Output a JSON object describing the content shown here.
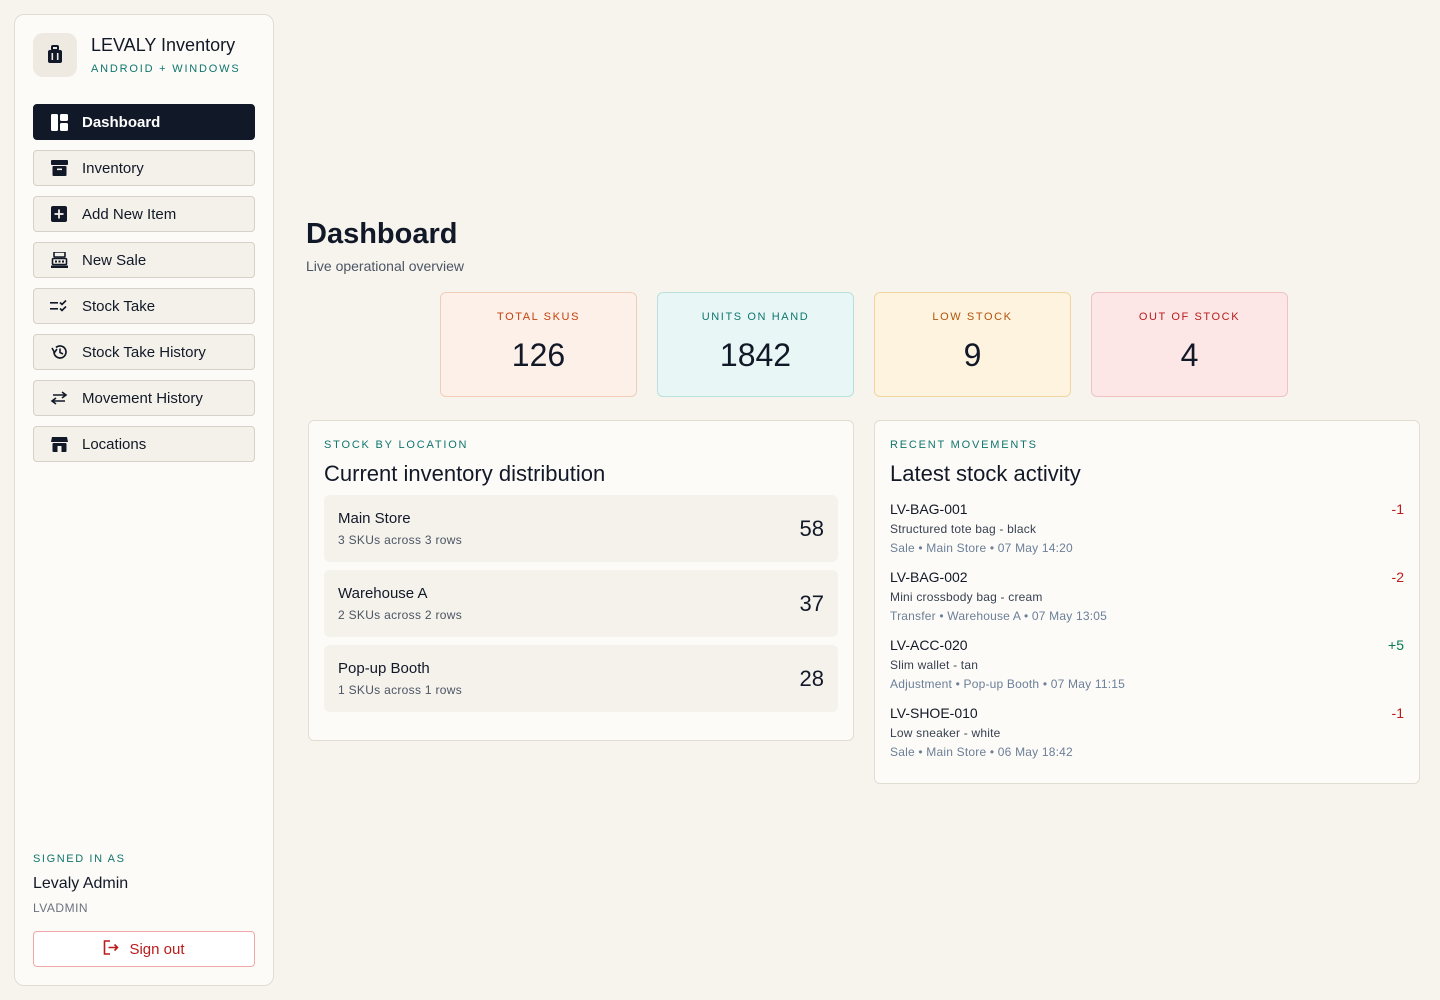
{
  "brand": {
    "title": "LEVALY Inventory",
    "subtitle": "ANDROID + WINDOWS",
    "icon": "bag-icon"
  },
  "nav": [
    {
      "label": "Dashboard",
      "icon": "dashboard-icon",
      "active": true
    },
    {
      "label": "Inventory",
      "icon": "archive-icon"
    },
    {
      "label": "Add New Item",
      "icon": "plus-square-icon"
    },
    {
      "label": "New Sale",
      "icon": "cash-register-icon"
    },
    {
      "label": "Stock Take",
      "icon": "checklist-icon"
    },
    {
      "label": "Stock Take History",
      "icon": "history-icon"
    },
    {
      "label": "Movement History",
      "icon": "swap-arrows-icon"
    },
    {
      "label": "Locations",
      "icon": "store-icon"
    }
  ],
  "signed": {
    "label": "SIGNED IN AS",
    "name": "Levaly Admin",
    "username": "LVADMIN",
    "signout_label": "Sign out"
  },
  "page": {
    "title": "Dashboard",
    "subtitle": "Live operational overview"
  },
  "stats": [
    {
      "label": "TOTAL SKUS",
      "value": "126",
      "bg": "#fdf0e8",
      "border": "#f1cdb8",
      "accent": "#c2410c"
    },
    {
      "label": "UNITS ON HAND",
      "value": "1842",
      "bg": "#e8f7f6",
      "border": "#b8e0dc",
      "accent": "#0f766e"
    },
    {
      "label": "LOW STOCK",
      "value": "9",
      "bg": "#fdf3df",
      "border": "#f0d69e",
      "accent": "#b45309"
    },
    {
      "label": "OUT OF STOCK",
      "value": "4",
      "bg": "#fce6e6",
      "border": "#f0c2c2",
      "accent": "#b91c1c"
    }
  ],
  "locations_panel": {
    "eyebrow": "STOCK BY LOCATION",
    "title": "Current inventory distribution",
    "rows": [
      {
        "name": "Main Store",
        "sub": "3 SKUs across 3 rows",
        "count": "58"
      },
      {
        "name": "Warehouse A",
        "sub": "2 SKUs across 2 rows",
        "count": "37"
      },
      {
        "name": "Pop-up Booth",
        "sub": "1 SKUs across 1 rows",
        "count": "28"
      }
    ]
  },
  "movements_panel": {
    "eyebrow": "RECENT MOVEMENTS",
    "title": "Latest stock activity",
    "items": [
      {
        "sku": "LV-BAG-001",
        "desc": "Structured tote bag - black",
        "meta": "Sale • Main Store • 07 May 14:20",
        "delta": "-1",
        "color": "#b91c1c"
      },
      {
        "sku": "LV-BAG-002",
        "desc": "Mini crossbody bag - cream",
        "meta": "Transfer • Warehouse A • 07 May 13:05",
        "delta": "-2",
        "color": "#b91c1c"
      },
      {
        "sku": "LV-ACC-020",
        "desc": "Slim wallet - tan",
        "meta": "Adjustment • Pop-up Booth • 07 May 11:15",
        "delta": "+5",
        "color": "#047857"
      },
      {
        "sku": "LV-SHOE-010",
        "desc": "Low sneaker - white",
        "meta": "Sale • Main Store • 06 May 18:42",
        "delta": "-1",
        "color": "#b91c1c"
      }
    ]
  }
}
